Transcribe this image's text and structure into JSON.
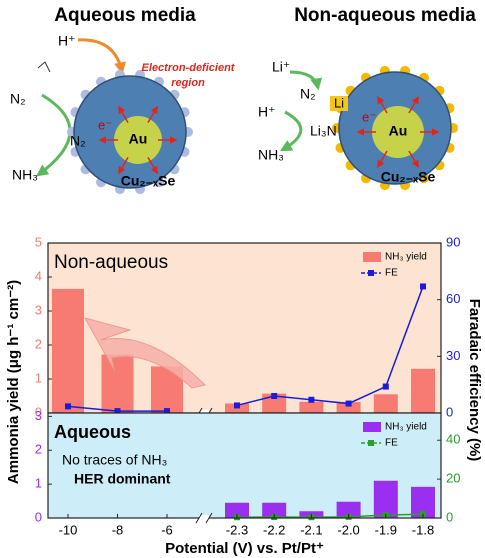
{
  "diagrams": {
    "aqueous": {
      "title": "Aqueous media",
      "h_plus": "H⁺",
      "n2_out": "N₂",
      "n2_in": "N₂",
      "nh3": "NH₃",
      "region": [
        "Electron-deficient",
        "region"
      ],
      "e": "e⁻",
      "au": "Au",
      "shell": "Cu₂₋ₓSe"
    },
    "non_aqueous": {
      "title": "Non-aqueous media",
      "li_plus": "Li⁺",
      "n2": "N₂",
      "li": "Li",
      "h_plus": "H⁺",
      "li3n": "Li₃N",
      "nh3": "NH₃",
      "e": "e⁻",
      "au": "Au",
      "shell": "Cu₂₋ₓSe"
    }
  },
  "chart_data": [
    {
      "type": "combo",
      "label": "Non-aqueous",
      "background": "#fde4d2",
      "legend": "upper right",
      "ylabel": "Ammonia yield (μg h⁻¹ cm⁻²)",
      "y2label": "Faradaic efficiency (%)",
      "ylim": [
        0,
        5
      ],
      "yticks": [
        0,
        1,
        2,
        3,
        4,
        5
      ],
      "y2lim": [
        0,
        90
      ],
      "y2ticks": [
        0,
        30,
        60,
        90
      ],
      "series": [
        {
          "name": "NH₃ yield",
          "kind": "bar",
          "color": "#f77b72",
          "values": [
            3.65,
            1.72,
            1.37,
            0.28,
            0.57,
            0.33,
            0.32,
            0.55,
            1.3
          ]
        },
        {
          "name": "FE",
          "kind": "line",
          "axis": "y2",
          "color": "#1c1cd8",
          "values": [
            3.5,
            1,
            1,
            4,
            9,
            7,
            5,
            14,
            67
          ]
        }
      ]
    },
    {
      "type": "combo",
      "label": "Aqueous",
      "background": "#cdeef8",
      "legend": "upper right",
      "annotations": [
        "No traces of NH₃",
        "HER dominant"
      ],
      "categories": [
        "-10",
        "-8",
        "-6",
        "-2.3",
        "-2.2",
        "-2.1",
        "-2.0",
        "-1.9",
        "-1.8"
      ],
      "xlabel": "Potential (V) vs. Pt/Pt⁺",
      "ylim": [
        0,
        3.1
      ],
      "yticks": [
        0,
        1,
        2,
        3
      ],
      "y2lim": [
        0,
        54
      ],
      "y2ticks": [
        0,
        20,
        40
      ],
      "series": [
        {
          "name": "NH₃ yield",
          "kind": "bar",
          "color": "#9b2ff0",
          "values": [
            null,
            null,
            null,
            0.45,
            0.45,
            0.2,
            0.48,
            1.1,
            0.92
          ]
        },
        {
          "name": "FE",
          "kind": "line",
          "axis": "y2",
          "color": "#2a9d2a",
          "values": [
            null,
            null,
            null,
            0.4,
            0.5,
            0.4,
            0.6,
            1.5,
            2
          ]
        }
      ]
    }
  ]
}
